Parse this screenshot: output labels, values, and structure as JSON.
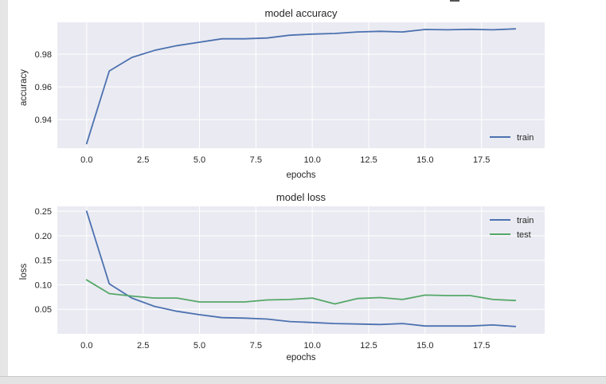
{
  "chart_data": [
    {
      "type": "line",
      "title": "model accuracy",
      "xlabel": "epochs",
      "ylabel": "accuracy",
      "xlim": [
        -1.3,
        20.3
      ],
      "ylim": [
        0.9225,
        0.9995
      ],
      "xticks": [
        0,
        2.5,
        5,
        7.5,
        10,
        12.5,
        15,
        17.5
      ],
      "xtick_labels": [
        "0.0",
        "2.5",
        "5.0",
        "7.5",
        "10.0",
        "12.5",
        "15.0",
        "17.5"
      ],
      "yticks": [
        0.94,
        0.96,
        0.98
      ],
      "ytick_labels": [
        "0.94",
        "0.96",
        "0.98"
      ],
      "grid": true,
      "legend_position": "lower-right",
      "series": [
        {
          "name": "train",
          "color": "#4c72b0",
          "x": [
            0,
            1,
            2,
            3,
            4,
            5,
            6,
            7,
            8,
            9,
            10,
            11,
            12,
            13,
            14,
            15,
            16,
            17,
            18,
            19
          ],
          "y": [
            0.9253,
            0.9697,
            0.978,
            0.9823,
            0.9852,
            0.9873,
            0.9894,
            0.9894,
            0.9899,
            0.9916,
            0.9923,
            0.9927,
            0.9936,
            0.994,
            0.9936,
            0.9951,
            0.9949,
            0.9952,
            0.9949,
            0.9955
          ]
        }
      ]
    },
    {
      "type": "line",
      "title": "model loss",
      "xlabel": "epochs",
      "ylabel": "loss",
      "xlim": [
        -1.3,
        20.3
      ],
      "ylim": [
        0.0,
        0.26
      ],
      "xticks": [
        0,
        2.5,
        5,
        7.5,
        10,
        12.5,
        15,
        17.5
      ],
      "xtick_labels": [
        "0.0",
        "2.5",
        "5.0",
        "7.5",
        "10.0",
        "12.5",
        "15.0",
        "17.5"
      ],
      "yticks": [
        0.05,
        0.1,
        0.15,
        0.2,
        0.25
      ],
      "ytick_labels": [
        "0.05",
        "0.10",
        "0.15",
        "0.20",
        "0.25"
      ],
      "grid": true,
      "legend_position": "upper-right",
      "series": [
        {
          "name": "train",
          "color": "#4c72b0",
          "x": [
            0,
            1,
            2,
            3,
            4,
            5,
            6,
            7,
            8,
            9,
            10,
            11,
            12,
            13,
            14,
            15,
            16,
            17,
            18,
            19
          ],
          "y": [
            0.25,
            0.102,
            0.073,
            0.056,
            0.046,
            0.039,
            0.033,
            0.032,
            0.03,
            0.025,
            0.023,
            0.021,
            0.02,
            0.019,
            0.021,
            0.016,
            0.016,
            0.016,
            0.018,
            0.015
          ]
        },
        {
          "name": "test",
          "color": "#55a868",
          "x": [
            0,
            1,
            2,
            3,
            4,
            5,
            6,
            7,
            8,
            9,
            10,
            11,
            12,
            13,
            14,
            15,
            16,
            17,
            18,
            19
          ],
          "y": [
            0.11,
            0.082,
            0.077,
            0.073,
            0.073,
            0.065,
            0.065,
            0.065,
            0.069,
            0.07,
            0.073,
            0.061,
            0.072,
            0.074,
            0.07,
            0.079,
            0.078,
            0.078,
            0.07,
            0.068
          ]
        }
      ]
    }
  ]
}
